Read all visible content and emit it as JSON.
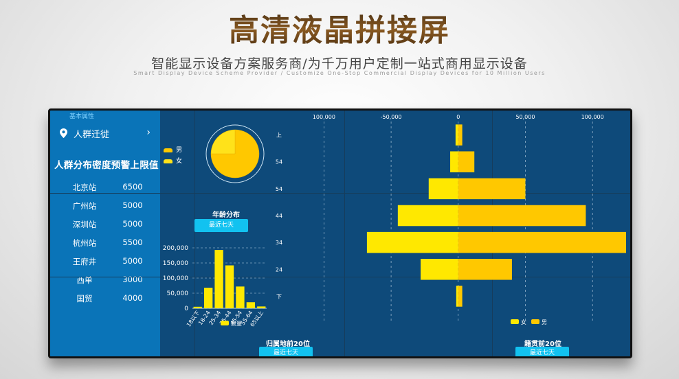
{
  "header": {
    "title": "高清液晶拼接屏",
    "subtitle": "智能显示设备方案服务商/为千万用户定制一站式商用显示设备",
    "subtitle_en": "Smart Display Device Scheme Provider / Customize One-Stop Commercial Display Devices for 10 Million Users"
  },
  "sidebar": {
    "small_label": "基本属性",
    "migrate_label": "人群迁徙",
    "warning_title": "人群分布密度预警上限值",
    "stations": [
      {
        "name": "北京站",
        "value": "6500"
      },
      {
        "name": "广州站",
        "value": "5000"
      },
      {
        "name": "深圳站",
        "value": "5000"
      },
      {
        "name": "杭州站",
        "value": "5500"
      },
      {
        "name": "王府井",
        "value": "5000"
      },
      {
        "name": "西单",
        "value": "3000"
      },
      {
        "name": "国贸",
        "value": "4000"
      }
    ]
  },
  "gender_legend": {
    "male": "男",
    "female": "女"
  },
  "age_section": {
    "title": "年龄分布",
    "button": "最近七天"
  },
  "origin_section": {
    "title": "归属地前20位",
    "button": "最近七天"
  },
  "native_section": {
    "title": "籍贯前20位",
    "button": "最近七天"
  },
  "colors": {
    "yellow": "#ffe800",
    "gold": "#ffc800",
    "cyan": "#12c2f0",
    "panel": "#0e4a7a",
    "sidebar": "#0a74b8"
  },
  "chart_data": [
    {
      "type": "pie",
      "title": "",
      "slices": [
        {
          "name": "男",
          "value": 0.75,
          "color": "#ffc800"
        },
        {
          "name": "女",
          "value": 0.25,
          "color": "#ffe21a"
        }
      ]
    },
    {
      "type": "bar",
      "title": "",
      "categories": [
        "18以下",
        "18-24",
        "25-34",
        "35-44",
        "45-54",
        "55-64",
        "65以上"
      ],
      "values": [
        5000,
        68000,
        193000,
        142000,
        72000,
        20000,
        6000
      ],
      "ylim": [
        0,
        200000
      ],
      "yticks": [
        "0",
        "50,000",
        "100,000",
        "150,000",
        "200,000"
      ],
      "legend": "数量"
    },
    {
      "type": "bar",
      "title": "",
      "orientation": "horizontal",
      "categories": [
        "上",
        "54",
        "54",
        "44",
        "34",
        "24",
        "下"
      ],
      "xlim": [
        -135000,
        125000
      ],
      "xticks": [
        "100,000",
        "-50,000",
        "0",
        "50,000",
        "100,000"
      ],
      "series": [
        {
          "name": "女",
          "values": [
            -2000,
            -6000,
            -22000,
            -45000,
            -68000,
            -28000,
            -1500
          ],
          "color": "#ffe800"
        },
        {
          "name": "男",
          "values": [
            3000,
            12000,
            50000,
            95000,
            125000,
            40000,
            3000
          ],
          "color": "#ffc800"
        }
      ]
    }
  ]
}
